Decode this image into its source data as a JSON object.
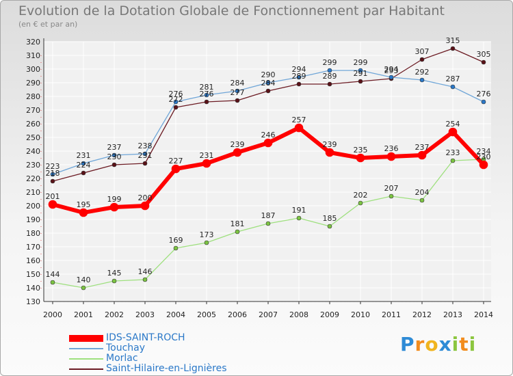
{
  "title": "Evolution de la Dotation Globale de Fonctionnement par Habitant",
  "subtitle": "(en € et par an)",
  "brand": {
    "letters": [
      "P",
      "r",
      "o",
      "x",
      "i",
      "t",
      "i"
    ],
    "colors": [
      "#2e8bd6",
      "#f28c1e",
      "#f0b41e",
      "#2e8bd6",
      "#8cc63f",
      "#f28c1e",
      "#8cc63f"
    ]
  },
  "chart_data": {
    "type": "line",
    "title": "Evolution de la Dotation Globale de Fonctionnement par Habitant",
    "ylabel": "(en € et par an)",
    "xlabel": "",
    "categories": [
      "2000",
      "2001",
      "2002",
      "2003",
      "2004",
      "2005",
      "2006",
      "2007",
      "2008",
      "2009",
      "2010",
      "2011",
      "2012",
      "2013",
      "2014"
    ],
    "ylim": [
      130,
      320
    ],
    "yticks": [
      130,
      140,
      150,
      160,
      170,
      180,
      190,
      200,
      210,
      220,
      230,
      240,
      250,
      260,
      270,
      280,
      290,
      300,
      310,
      320
    ],
    "series": [
      {
        "name": "Saint-Hilaire-en-Lignières",
        "color": "#6b1a22",
        "marker": "#5a1218",
        "width": 1.3,
        "values": [
          218,
          224,
          230,
          231,
          272,
          276,
          277,
          284,
          289,
          289,
          291,
          293,
          307,
          315,
          305
        ]
      },
      {
        "name": "Touchay",
        "color": "#6fa6d8",
        "marker": "#2a78c8",
        "width": 1.3,
        "values": [
          223,
          231,
          237,
          238,
          276,
          281,
          284,
          290,
          294,
          299,
          299,
          294,
          292,
          287,
          276
        ]
      },
      {
        "name": "Morlac",
        "color": "#9ee07e",
        "marker": "#7cc442",
        "width": 1.3,
        "values": [
          144,
          140,
          145,
          146,
          169,
          173,
          181,
          187,
          191,
          185,
          202,
          207,
          204,
          233,
          234
        ]
      },
      {
        "name": "IDS-SAINT-ROCH",
        "color": "#ff0000",
        "marker": "#ff0000",
        "width": 6,
        "values": [
          201,
          195,
          199,
          200,
          227,
          231,
          239,
          246,
          257,
          239,
          235,
          236,
          237,
          254,
          230
        ]
      }
    ],
    "legend_order": [
      "IDS-SAINT-ROCH",
      "Touchay",
      "Morlac",
      "Saint-Hilaire-en-Lignières"
    ],
    "grid": true,
    "legend": "bottom-left"
  }
}
